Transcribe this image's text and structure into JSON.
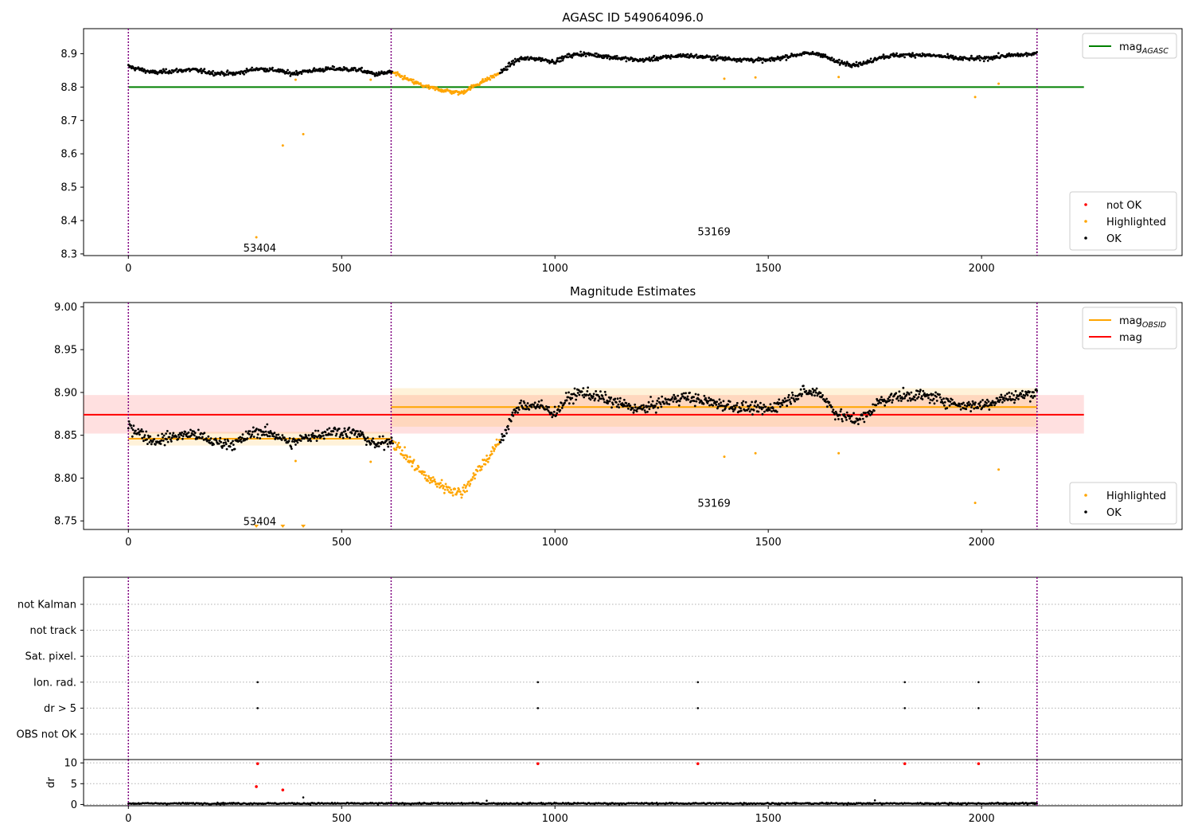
{
  "chart_data": [
    {
      "type": "scatter",
      "title": "AGASC ID 549064096.0",
      "xlim": [
        -105,
        2470
      ],
      "ylim": [
        8.295,
        8.975
      ],
      "xticks": [
        0,
        500,
        1000,
        1500,
        2000
      ],
      "yticks": [
        8.3,
        8.4,
        8.5,
        8.6,
        8.7,
        8.8,
        8.9
      ],
      "ytick_decimals": 1,
      "grid": false,
      "vlines": [
        0,
        616,
        2130
      ],
      "annotations": [
        {
          "text": "53404",
          "x": 308,
          "y": 8.317
        },
        {
          "text": "53169",
          "x": 1373,
          "y": 8.365
        }
      ],
      "lines": [
        {
          "name": "mag_AGASC",
          "x": [
            0,
            2240
          ],
          "y": [
            8.8,
            8.8
          ],
          "color": "#008000"
        }
      ],
      "ok_curve": {
        "x": [
          0,
          20,
          60,
          100,
          150,
          200,
          250,
          300,
          350,
          380,
          420,
          480,
          540,
          580,
          616,
          660,
          700,
          740,
          780,
          820,
          860,
          880,
          900,
          920,
          960,
          1000,
          1030,
          1060,
          1100,
          1150,
          1200,
          1250,
          1300,
          1350,
          1400,
          1450,
          1500,
          1550,
          1580,
          1620,
          1660,
          1700,
          1730,
          1760,
          1800,
          1850,
          1900,
          1950,
          2000,
          2050,
          2100,
          2130
        ],
        "y": [
          8.862,
          8.855,
          8.843,
          8.848,
          8.852,
          8.842,
          8.84,
          8.855,
          8.85,
          8.84,
          8.848,
          8.855,
          8.852,
          8.838,
          8.845,
          8.82,
          8.8,
          8.79,
          8.782,
          8.81,
          8.835,
          8.85,
          8.873,
          8.885,
          8.885,
          8.876,
          8.893,
          8.9,
          8.895,
          8.887,
          8.88,
          8.888,
          8.895,
          8.89,
          8.885,
          8.882,
          8.88,
          8.893,
          8.9,
          8.9,
          8.875,
          8.868,
          8.872,
          8.89,
          8.895,
          8.897,
          8.893,
          8.885,
          8.885,
          8.893,
          8.897,
          8.9
        ]
      },
      "highlighted_range": [
        616,
        870
      ],
      "highlighted_points": [
        {
          "x": 300,
          "y": 8.35
        },
        {
          "x": 362,
          "y": 8.625
        },
        {
          "x": 410,
          "y": 8.659
        },
        {
          "x": 392,
          "y": 8.822
        },
        {
          "x": 568,
          "y": 8.822
        },
        {
          "x": 1397,
          "y": 8.825
        },
        {
          "x": 1470,
          "y": 8.829
        },
        {
          "x": 1665,
          "y": 8.83
        },
        {
          "x": 1985,
          "y": 8.77
        },
        {
          "x": 2040,
          "y": 8.81
        }
      ],
      "legends": [
        {
          "position": "top-right",
          "entries": [
            {
              "label": "mag",
              "sub": "AGASC",
              "kind": "line",
              "color": "#008000"
            }
          ]
        },
        {
          "position": "bottom-right",
          "entries": [
            {
              "label": "not OK",
              "kind": "dot",
              "color": "#ff0000"
            },
            {
              "label": "Highlighted",
              "kind": "dot",
              "color": "#ffa500"
            },
            {
              "label": "OK",
              "kind": "dot",
              "color": "#000000"
            }
          ]
        }
      ]
    },
    {
      "type": "scatter",
      "title": "Magnitude Estimates",
      "xlim": [
        -105,
        2470
      ],
      "ylim": [
        8.74,
        9.005
      ],
      "xticks": [
        0,
        500,
        1000,
        1500,
        2000
      ],
      "yticks": [
        8.75,
        8.8,
        8.85,
        8.9,
        8.95,
        9.0
      ],
      "ytick_decimals": 2,
      "grid": false,
      "vlines": [
        0,
        616,
        2130
      ],
      "annotations": [
        {
          "text": "53404",
          "x": 308,
          "y": 8.749
        },
        {
          "text": "53169",
          "x": 1373,
          "y": 8.77
        }
      ],
      "bands": [
        {
          "x": [
            -105,
            2240
          ],
          "y": [
            8.852,
            8.897
          ],
          "color": "#ff0000",
          "opacity": 0.12
        },
        {
          "x": [
            0,
            616
          ],
          "y": [
            8.838,
            8.854
          ],
          "color": "#ffa500",
          "opacity": 0.15
        },
        {
          "x": [
            616,
            2130
          ],
          "y": [
            8.86,
            8.905
          ],
          "color": "#ffa500",
          "opacity": 0.15
        }
      ],
      "lines": [
        {
          "name": "mag",
          "x": [
            -105,
            2240
          ],
          "y": [
            8.874,
            8.874
          ],
          "color": "#ff0000"
        },
        {
          "name": "mag_OBSID",
          "x": [
            0,
            616
          ],
          "y": [
            8.846,
            8.846
          ],
          "color": "#ffa500"
        },
        {
          "name": "mag_OBSID",
          "x": [
            616,
            2130
          ],
          "y": [
            8.883,
            8.883
          ],
          "color": "#ffa500"
        }
      ],
      "ok_curve": {
        "x": [
          0,
          20,
          60,
          100,
          150,
          200,
          250,
          300,
          350,
          380,
          420,
          480,
          540,
          580,
          616,
          660,
          700,
          740,
          780,
          820,
          860,
          880,
          900,
          920,
          960,
          1000,
          1030,
          1060,
          1100,
          1150,
          1200,
          1250,
          1300,
          1350,
          1400,
          1450,
          1500,
          1550,
          1580,
          1620,
          1660,
          1700,
          1730,
          1760,
          1800,
          1850,
          1900,
          1950,
          2000,
          2050,
          2100,
          2130
        ],
        "y": [
          8.862,
          8.855,
          8.843,
          8.848,
          8.852,
          8.842,
          8.84,
          8.855,
          8.85,
          8.84,
          8.848,
          8.855,
          8.852,
          8.838,
          8.845,
          8.82,
          8.8,
          8.79,
          8.782,
          8.81,
          8.835,
          8.85,
          8.873,
          8.885,
          8.885,
          8.876,
          8.893,
          8.9,
          8.895,
          8.887,
          8.88,
          8.888,
          8.895,
          8.89,
          8.885,
          8.882,
          8.88,
          8.893,
          8.9,
          8.9,
          8.875,
          8.868,
          8.872,
          8.89,
          8.895,
          8.897,
          8.893,
          8.885,
          8.885,
          8.893,
          8.897,
          8.9
        ]
      },
      "highlighted_range": [
        616,
        870
      ],
      "highlighted_points": [
        {
          "x": 392,
          "y": 8.82
        },
        {
          "x": 568,
          "y": 8.819
        },
        {
          "x": 1397,
          "y": 8.825
        },
        {
          "x": 1470,
          "y": 8.829
        },
        {
          "x": 1665,
          "y": 8.829
        },
        {
          "x": 1985,
          "y": 8.771
        },
        {
          "x": 2040,
          "y": 8.81
        }
      ],
      "clipped_markers": [
        {
          "x": 300
        },
        {
          "x": 362
        },
        {
          "x": 410
        }
      ],
      "legends": [
        {
          "position": "top-right",
          "entries": [
            {
              "label": "mag",
              "sub": "OBSID",
              "kind": "line",
              "color": "#ffa500"
            },
            {
              "label": "mag",
              "kind": "line",
              "color": "#ff0000"
            }
          ]
        },
        {
          "position": "bottom-right",
          "entries": [
            {
              "label": "Highlighted",
              "kind": "dot",
              "color": "#ffa500"
            },
            {
              "label": "OK",
              "kind": "dot",
              "color": "#000000"
            }
          ]
        }
      ]
    },
    {
      "type": "scatter",
      "title": "",
      "xlim": [
        -105,
        2470
      ],
      "categories": [
        "not Kalman",
        "not track",
        "Sat. pixel.",
        "Ion. rad.",
        "dr > 5",
        "OBS not OK"
      ],
      "grid": true,
      "vlines": [
        0,
        616,
        2130
      ],
      "flags": [
        {
          "category": "Ion. rad.",
          "x": [
            303,
            960,
            1335,
            1820,
            1993
          ]
        },
        {
          "category": "dr > 5",
          "x": [
            303,
            960,
            1335,
            1820,
            1993
          ]
        }
      ]
    },
    {
      "type": "scatter",
      "title": "",
      "ylabel": "dr",
      "xlim": [
        -105,
        2470
      ],
      "ylim": [
        -0.3,
        10.8
      ],
      "xticks": [
        0,
        500,
        1000,
        1500,
        2000
      ],
      "yticks": [
        0,
        5,
        10
      ],
      "ytick_decimals": 0,
      "grid": true,
      "vlines": [
        0,
        616,
        2130
      ],
      "dr_baseline": {
        "range": [
          0,
          2130
        ],
        "mean": 0.25
      },
      "red_points": [
        {
          "x": 303,
          "y": 9.8
        },
        {
          "x": 960,
          "y": 9.8
        },
        {
          "x": 1335,
          "y": 9.8
        },
        {
          "x": 1820,
          "y": 9.8
        },
        {
          "x": 1993,
          "y": 9.8
        },
        {
          "x": 300,
          "y": 4.3
        },
        {
          "x": 362,
          "y": 3.5
        }
      ],
      "black_points": [
        {
          "x": 410,
          "y": 1.7
        },
        {
          "x": 840,
          "y": 0.9
        },
        {
          "x": 1750,
          "y": 1.0
        }
      ]
    }
  ]
}
